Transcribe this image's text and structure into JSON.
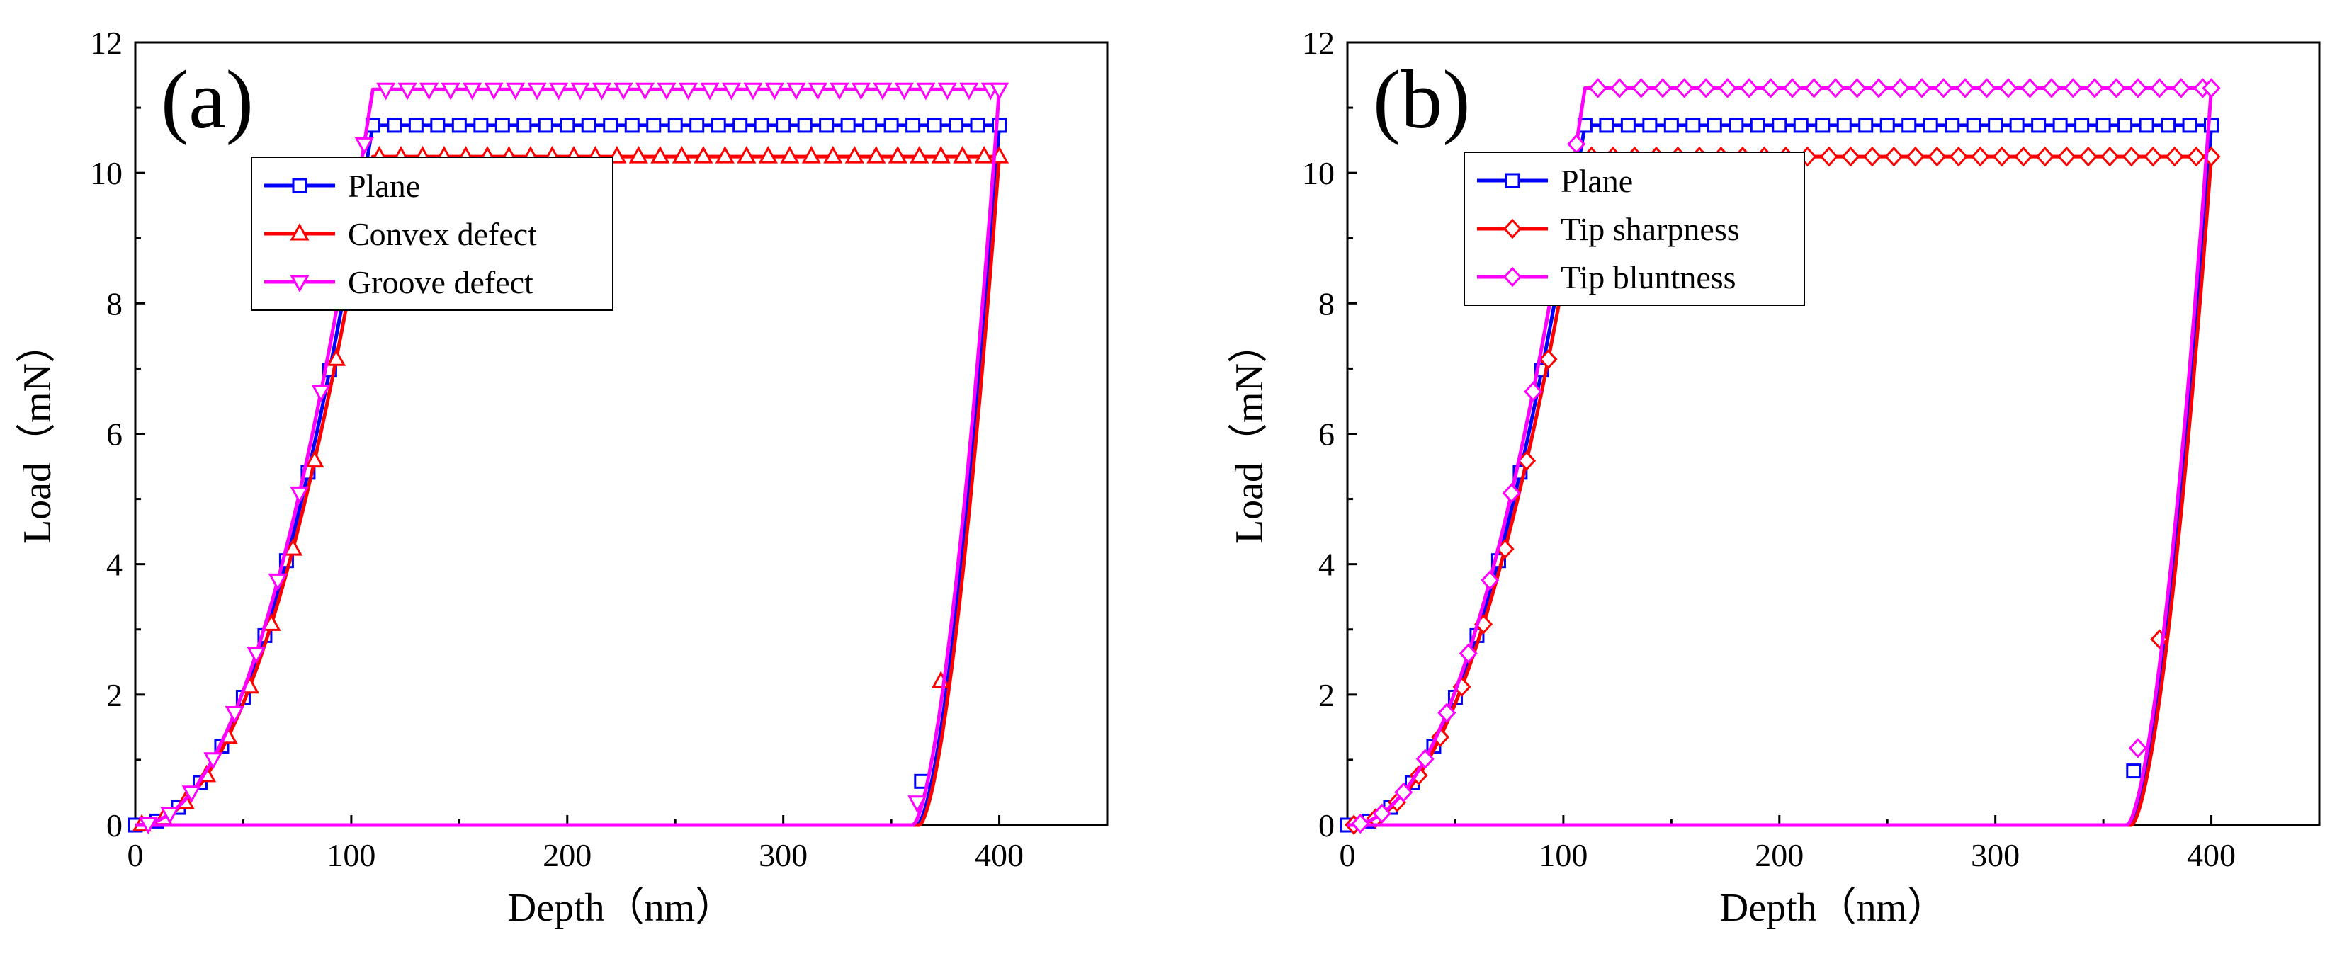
{
  "chart_data": [
    {
      "type": "line",
      "panel_label": "(a)",
      "xlabel": "Depth（nm）",
      "ylabel": "Load（mN）",
      "xlim": [
        0,
        450
      ],
      "ylim": [
        0,
        12
      ],
      "xticks": [
        0,
        100,
        200,
        300,
        400
      ],
      "yticks": [
        0,
        2,
        4,
        6,
        8,
        10,
        12
      ],
      "grid": false,
      "legend_position": "top-left",
      "series": [
        {
          "name": "Plane",
          "color": "#0000ff",
          "marker": "square",
          "k": 0.0606,
          "n": 2.16,
          "peak": 10.73,
          "unload_end": 362,
          "unload_marker": [
            364,
            0.67
          ]
        },
        {
          "name": "Convex defect",
          "color": "#ff0000",
          "marker": "triangle-up",
          "k": 0.0578,
          "n": 2.16,
          "peak": 10.25,
          "unload_end": 363,
          "unload_marker": [
            373,
            2.2
          ]
        },
        {
          "name": "Groove defect",
          "color": "#ff00ff",
          "marker": "triangle-down",
          "k": 0.0637,
          "n": 2.16,
          "peak": 11.28,
          "unload_end": 360,
          "unload_marker": [
            362,
            0.35
          ]
        }
      ]
    },
    {
      "type": "line",
      "panel_label": "(b)",
      "xlabel": "Depth（nm）",
      "ylabel": "Load（mN）",
      "xlim": [
        0,
        450
      ],
      "ylim": [
        0,
        12
      ],
      "xticks": [
        0,
        100,
        200,
        300,
        400
      ],
      "yticks": [
        0,
        2,
        4,
        6,
        8,
        10,
        12
      ],
      "grid": false,
      "legend_position": "top-left",
      "series": [
        {
          "name": "Plane",
          "color": "#0000ff",
          "marker": "square",
          "k": 0.0606,
          "n": 2.16,
          "peak": 10.73,
          "unload_end": 362,
          "unload_marker": [
            364,
            0.83
          ]
        },
        {
          "name": "Tip sharpness",
          "color": "#ff0000",
          "marker": "diamond",
          "k": 0.0578,
          "n": 2.16,
          "peak": 10.25,
          "unload_end": 363,
          "unload_marker": [
            376,
            2.85
          ]
        },
        {
          "name": "Tip bluntness",
          "color": "#ff00ff",
          "marker": "diamond",
          "k": 0.0637,
          "n": 2.16,
          "peak": 11.3,
          "unload_end": 361,
          "unload_marker": [
            366,
            1.18
          ]
        }
      ]
    }
  ]
}
